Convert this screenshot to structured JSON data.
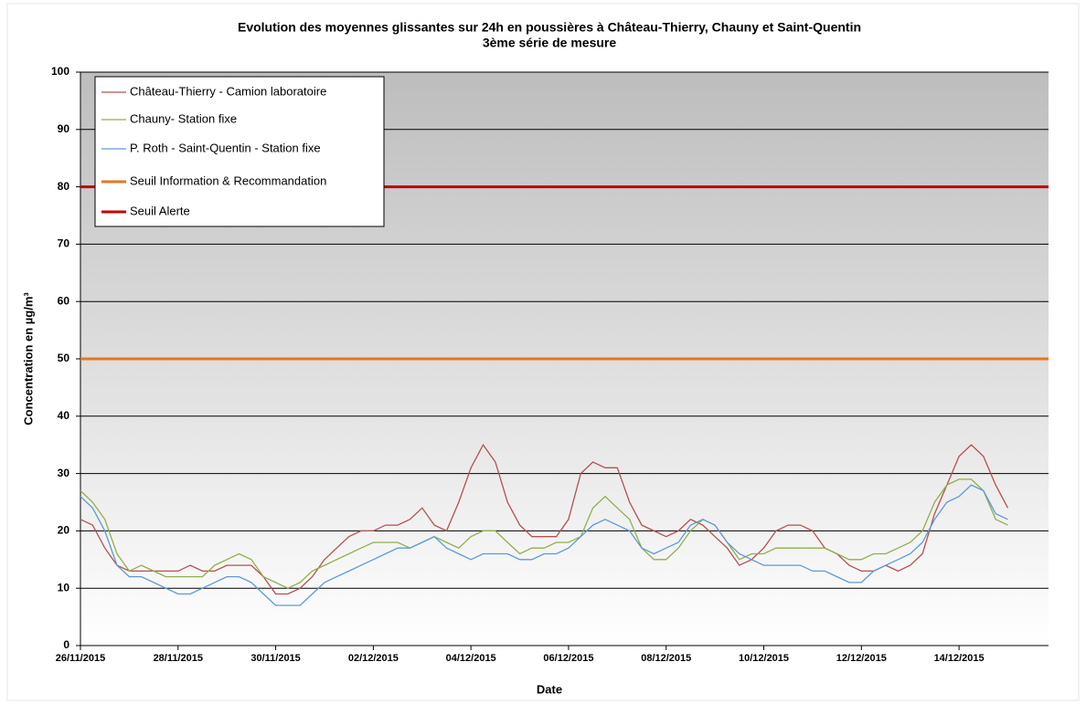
{
  "chart_data": {
    "type": "line",
    "title": "Evolution des moyennes glissantes sur 24h en poussières à Château-Thierry, Chauny et Saint-Quentin",
    "subtitle": "3ème série de mesure",
    "x_label": "Date",
    "y_label": "Concentration en µg/m³",
    "x": [
      "2015-11-26T00:00",
      "2015-11-26T06:00",
      "2015-11-26T12:00",
      "2015-11-26T18:00",
      "2015-11-27T00:00",
      "2015-11-27T06:00",
      "2015-11-27T12:00",
      "2015-11-27T18:00",
      "2015-11-28T00:00",
      "2015-11-28T06:00",
      "2015-11-28T12:00",
      "2015-11-28T18:00",
      "2015-11-29T00:00",
      "2015-11-29T06:00",
      "2015-11-29T12:00",
      "2015-11-29T18:00",
      "2015-11-30T00:00",
      "2015-11-30T06:00",
      "2015-11-30T12:00",
      "2015-11-30T18:00",
      "2015-12-01T00:00",
      "2015-12-01T06:00",
      "2015-12-01T12:00",
      "2015-12-01T18:00",
      "2015-12-02T00:00",
      "2015-12-02T06:00",
      "2015-12-02T12:00",
      "2015-12-02T18:00",
      "2015-12-03T00:00",
      "2015-12-03T06:00",
      "2015-12-03T12:00",
      "2015-12-03T18:00",
      "2015-12-04T00:00",
      "2015-12-04T06:00",
      "2015-12-04T12:00",
      "2015-12-04T18:00",
      "2015-12-05T00:00",
      "2015-12-05T06:00",
      "2015-12-05T12:00",
      "2015-12-05T18:00",
      "2015-12-06T00:00",
      "2015-12-06T06:00",
      "2015-12-06T12:00",
      "2015-12-06T18:00",
      "2015-12-07T00:00",
      "2015-12-07T06:00",
      "2015-12-07T12:00",
      "2015-12-07T18:00",
      "2015-12-08T00:00",
      "2015-12-08T06:00",
      "2015-12-08T12:00",
      "2015-12-08T18:00",
      "2015-12-09T00:00",
      "2015-12-09T06:00",
      "2015-12-09T12:00",
      "2015-12-09T18:00",
      "2015-12-10T00:00",
      "2015-12-10T06:00",
      "2015-12-10T12:00",
      "2015-12-10T18:00",
      "2015-12-11T00:00",
      "2015-12-11T06:00",
      "2015-12-11T12:00",
      "2015-12-11T18:00",
      "2015-12-12T00:00",
      "2015-12-12T06:00",
      "2015-12-12T12:00",
      "2015-12-12T18:00",
      "2015-12-13T00:00",
      "2015-12-13T06:00",
      "2015-12-13T12:00",
      "2015-12-13T18:00",
      "2015-12-14T00:00",
      "2015-12-14T06:00",
      "2015-12-14T12:00",
      "2015-12-14T18:00",
      "2015-12-15T00:00"
    ],
    "series": [
      {
        "name": "Château-Thierry - Camion laboratoire",
        "color": "#b5504f",
        "values": [
          22,
          21,
          17,
          14,
          13,
          13,
          13,
          13,
          13,
          14,
          13,
          13,
          14,
          14,
          14,
          12,
          9,
          9,
          10,
          12,
          15,
          17,
          19,
          20,
          20,
          21,
          21,
          22,
          24,
          21,
          20,
          25,
          31,
          35,
          32,
          25,
          21,
          19,
          19,
          19,
          22,
          30,
          32,
          31,
          31,
          25,
          21,
          20,
          19,
          20,
          22,
          21,
          19,
          17,
          14,
          15,
          17,
          20,
          21,
          21,
          20,
          17,
          16,
          14,
          13,
          13,
          14,
          13,
          14,
          16,
          23,
          28,
          33,
          35,
          33,
          28,
          24
        ]
      },
      {
        "name": "Chauny- Station fixe",
        "color": "#8fb04a",
        "values": [
          27,
          25,
          22,
          16,
          13,
          14,
          13,
          12,
          12,
          12,
          12,
          14,
          15,
          16,
          15,
          12,
          11,
          10,
          11,
          13,
          14,
          15,
          16,
          17,
          18,
          18,
          18,
          17,
          18,
          19,
          18,
          17,
          19,
          20,
          20,
          18,
          16,
          17,
          17,
          18,
          18,
          19,
          24,
          26,
          24,
          22,
          17,
          15,
          15,
          17,
          20,
          22,
          21,
          18,
          15,
          16,
          16,
          17,
          17,
          17,
          17,
          17,
          16,
          15,
          15,
          16,
          16,
          17,
          18,
          20,
          25,
          28,
          29,
          29,
          27,
          22,
          21
        ]
      },
      {
        "name": "P. Roth - Saint-Quentin - Station fixe",
        "color": "#5b9bd5",
        "values": [
          26,
          24,
          20,
          14,
          12,
          12,
          11,
          10,
          9,
          9,
          10,
          11,
          12,
          12,
          11,
          9,
          7,
          7,
          7,
          9,
          11,
          12,
          13,
          14,
          15,
          16,
          17,
          17,
          18,
          19,
          17,
          16,
          15,
          16,
          16,
          16,
          15,
          15,
          16,
          16,
          17,
          19,
          21,
          22,
          21,
          20,
          17,
          16,
          17,
          18,
          21,
          22,
          21,
          18,
          16,
          15,
          14,
          14,
          14,
          14,
          13,
          13,
          12,
          11,
          11,
          13,
          14,
          15,
          16,
          18,
          22,
          25,
          26,
          28,
          27,
          23,
          22
        ]
      }
    ],
    "thresholds": [
      {
        "name": "Seuil Information & Recommandation",
        "color": "#e8761f",
        "value": 50
      },
      {
        "name": "Seuil Alerte",
        "color": "#c00000",
        "value": 80
      }
    ],
    "xlim": [
      "2015-11-26T00:00",
      "2015-12-15T20:00"
    ],
    "xticks": [
      {
        "value": "2015-11-26T00:00",
        "label": "26/11/2015"
      },
      {
        "value": "2015-11-28T00:00",
        "label": "28/11/2015"
      },
      {
        "value": "2015-11-30T00:00",
        "label": "30/11/2015"
      },
      {
        "value": "2015-12-02T00:00",
        "label": "02/12/2015"
      },
      {
        "value": "2015-12-04T00:00",
        "label": "04/12/2015"
      },
      {
        "value": "2015-12-06T00:00",
        "label": "06/12/2015"
      },
      {
        "value": "2015-12-08T00:00",
        "label": "08/12/2015"
      },
      {
        "value": "2015-12-10T00:00",
        "label": "10/12/2015"
      },
      {
        "value": "2015-12-12T00:00",
        "label": "12/12/2015"
      },
      {
        "value": "2015-12-14T00:00",
        "label": "14/12/2015"
      }
    ],
    "ylim": [
      0,
      100
    ],
    "yticks": [
      0,
      10,
      20,
      30,
      40,
      50,
      60,
      70,
      80,
      90,
      100
    ],
    "grid": true,
    "legend": "upper-left"
  }
}
